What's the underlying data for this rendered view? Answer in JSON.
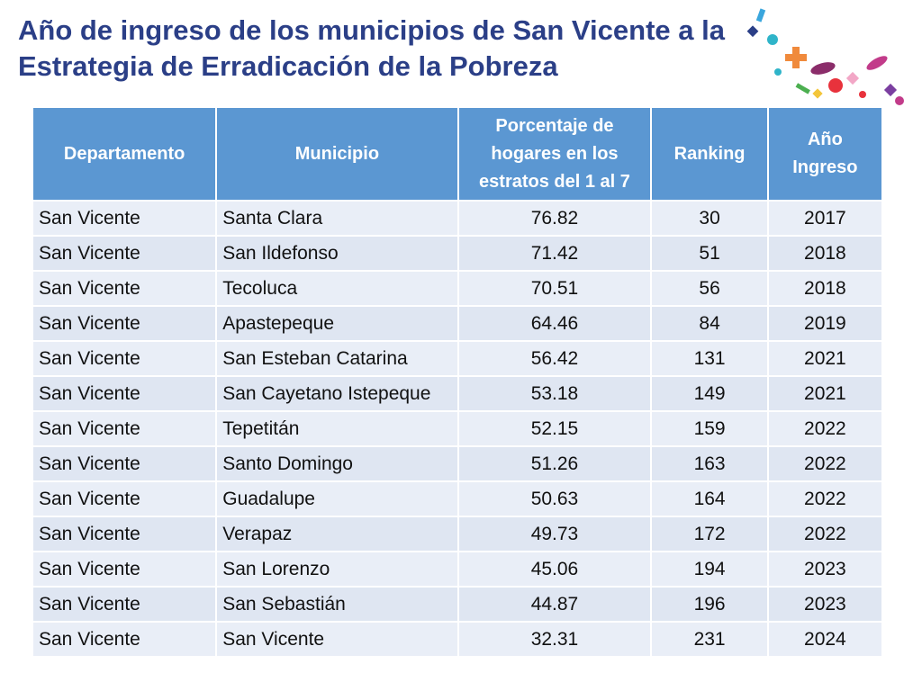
{
  "title": "Año de ingreso de los municipios de San Vicente a la Estrategia de Erradicación de la Pobreza",
  "table": {
    "header": [
      "Departamento",
      "Municipio",
      "Porcentaje de hogares en los estratos del 1 al 7",
      "Ranking",
      "Año Ingreso"
    ],
    "rows": [
      [
        "San Vicente",
        "Santa Clara",
        "76.82",
        "30",
        "2017"
      ],
      [
        "San Vicente",
        "San Ildefonso",
        "71.42",
        "51",
        "2018"
      ],
      [
        "San Vicente",
        "Tecoluca",
        "70.51",
        "56",
        "2018"
      ],
      [
        "San Vicente",
        "Apastepeque",
        "64.46",
        "84",
        "2019"
      ],
      [
        "San Vicente",
        "San Esteban Catarina",
        "56.42",
        "131",
        "2021"
      ],
      [
        "San Vicente",
        "San Cayetano Istepeque",
        "53.18",
        "149",
        "2021"
      ],
      [
        "San Vicente",
        "Tepetitán",
        "52.15",
        "159",
        "2022"
      ],
      [
        "San Vicente",
        "Santo Domingo",
        "51.26",
        "163",
        "2022"
      ],
      [
        "San Vicente",
        "Guadalupe",
        "50.63",
        "164",
        "2022"
      ],
      [
        "San Vicente",
        "Verapaz",
        "49.73",
        "172",
        "2022"
      ],
      [
        "San Vicente",
        "San Lorenzo",
        "45.06",
        "194",
        "2023"
      ],
      [
        "San Vicente",
        "San Sebastián",
        "44.87",
        "196",
        "2023"
      ],
      [
        "San Vicente",
        "San Vicente",
        "32.31",
        "231",
        "2024"
      ]
    ]
  }
}
